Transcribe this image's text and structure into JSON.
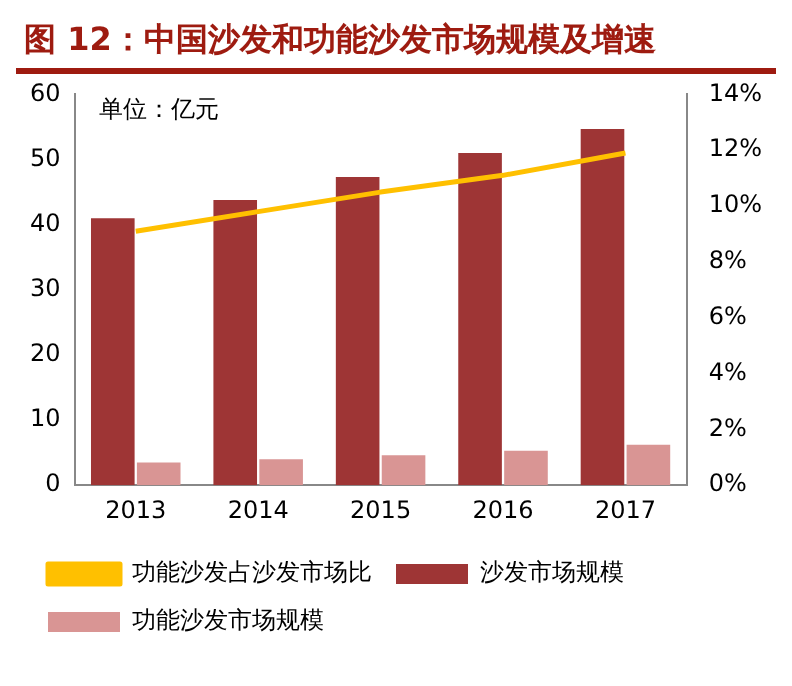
{
  "chart_data": {
    "type": "bar",
    "title": "图 12：中国沙发和功能沙发市场规模及增速",
    "categories": [
      "2013",
      "2014",
      "2015",
      "2016",
      "2017"
    ],
    "series": [
      {
        "name": "沙发市场规模",
        "color": "#9e3535",
        "values": [
          41.0,
          43.8,
          47.3,
          51.0,
          54.7
        ]
      },
      {
        "name": "功能沙发市场规模",
        "color": "#d99594",
        "values": [
          3.5,
          4.0,
          4.6,
          5.3,
          6.2
        ]
      },
      {
        "name": "功能沙发占沙发市场比",
        "type": "line",
        "axis": "y2",
        "color": "#ffc000",
        "marker": "none",
        "values": [
          9.1,
          9.8,
          10.5,
          11.1,
          11.9
        ]
      }
    ],
    "ylim": [
      0,
      60
    ],
    "yticks": [
      0,
      10,
      20,
      30,
      40,
      50,
      60
    ],
    "y2lim": [
      0,
      14
    ],
    "y2ticks": [
      {
        "value": 0,
        "label": "0%"
      },
      {
        "value": 2,
        "label": "2%"
      },
      {
        "value": 4,
        "label": "4%"
      },
      {
        "value": 6,
        "label": "6%"
      },
      {
        "value": 8,
        "label": "8%"
      },
      {
        "value": 10,
        "label": "10%"
      },
      {
        "value": 12,
        "label": "12%"
      },
      {
        "value": 14,
        "label": "14%"
      }
    ],
    "annotations": [
      "单位：亿元"
    ],
    "grid": false,
    "legend": "bottom"
  }
}
